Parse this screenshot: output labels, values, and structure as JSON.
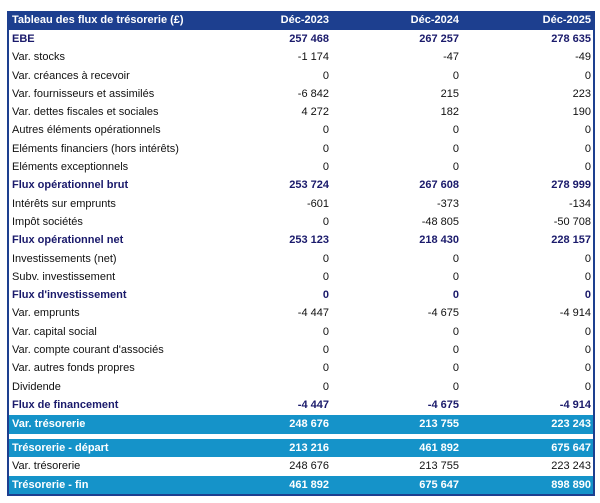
{
  "header": {
    "title": "Tableau des flux de trésorerie (£)",
    "columns": [
      "Déc-2023",
      "Déc-2024",
      "Déc-2025"
    ]
  },
  "rows": [
    {
      "label": "EBE",
      "values": [
        "257 468",
        "267 257",
        "278 635"
      ],
      "style": "bold"
    },
    {
      "label": "Var. stocks",
      "values": [
        "-1 174",
        "-47",
        "-49"
      ],
      "style": ""
    },
    {
      "label": "Var. créances à recevoir",
      "values": [
        "0",
        "0",
        "0"
      ],
      "style": ""
    },
    {
      "label": "Var. fournisseurs et assimilés",
      "values": [
        "-6 842",
        "215",
        "223"
      ],
      "style": ""
    },
    {
      "label": "Var. dettes fiscales et sociales",
      "values": [
        "4 272",
        "182",
        "190"
      ],
      "style": ""
    },
    {
      "label": "Autres éléments opérationnels",
      "values": [
        "0",
        "0",
        "0"
      ],
      "style": ""
    },
    {
      "label": "Eléments financiers (hors intérêts)",
      "values": [
        "0",
        "0",
        "0"
      ],
      "style": ""
    },
    {
      "label": "Eléments exceptionnels",
      "values": [
        "0",
        "0",
        "0"
      ],
      "style": ""
    },
    {
      "label": "Flux opérationnel brut",
      "values": [
        "253 724",
        "267 608",
        "278 999"
      ],
      "style": "bold"
    },
    {
      "label": "Intérêts sur emprunts",
      "values": [
        "-601",
        "-373",
        "-134"
      ],
      "style": ""
    },
    {
      "label": "Impôt sociétés",
      "values": [
        "0",
        "-48 805",
        "-50 708"
      ],
      "style": ""
    },
    {
      "label": "Flux opérationnel net",
      "values": [
        "253 123",
        "218 430",
        "228 157"
      ],
      "style": "bold"
    },
    {
      "label": "Investissements (net)",
      "values": [
        "0",
        "0",
        "0"
      ],
      "style": ""
    },
    {
      "label": "Subv. investissement",
      "values": [
        "0",
        "0",
        "0"
      ],
      "style": ""
    },
    {
      "label": "Flux d'investissement",
      "values": [
        "0",
        "0",
        "0"
      ],
      "style": "bold"
    },
    {
      "label": "Var. emprunts",
      "values": [
        "-4 447",
        "-4 675",
        "-4 914"
      ],
      "style": ""
    },
    {
      "label": "Var. capital social",
      "values": [
        "0",
        "0",
        "0"
      ],
      "style": ""
    },
    {
      "label": "Var. compte courant d'associés",
      "values": [
        "0",
        "0",
        "0"
      ],
      "style": ""
    },
    {
      "label": "Var. autres fonds propres",
      "values": [
        "0",
        "0",
        "0"
      ],
      "style": ""
    },
    {
      "label": "Dividende",
      "values": [
        "0",
        "0",
        "0"
      ],
      "style": ""
    },
    {
      "label": "Flux de financement",
      "values": [
        "-4 447",
        "-4 675",
        "-4 914"
      ],
      "style": "bold"
    },
    {
      "label": "Var. trésorerie",
      "values": [
        "248 676",
        "213 755",
        "223 243"
      ],
      "style": "hl"
    }
  ],
  "summary": [
    {
      "label": "Trésorerie - départ",
      "values": [
        "213 216",
        "461 892",
        "675 647"
      ],
      "style": "hl"
    },
    {
      "label": "Var. trésorerie",
      "values": [
        "248 676",
        "213 755",
        "223 243"
      ],
      "style": ""
    },
    {
      "label": "Trésorerie - fin",
      "values": [
        "461 892",
        "675 647",
        "898 890"
      ],
      "style": "hl"
    }
  ],
  "colors": {
    "header": "#1d3f8f",
    "highlight": "#1593c9",
    "bold_text": "#1a1a6b"
  }
}
